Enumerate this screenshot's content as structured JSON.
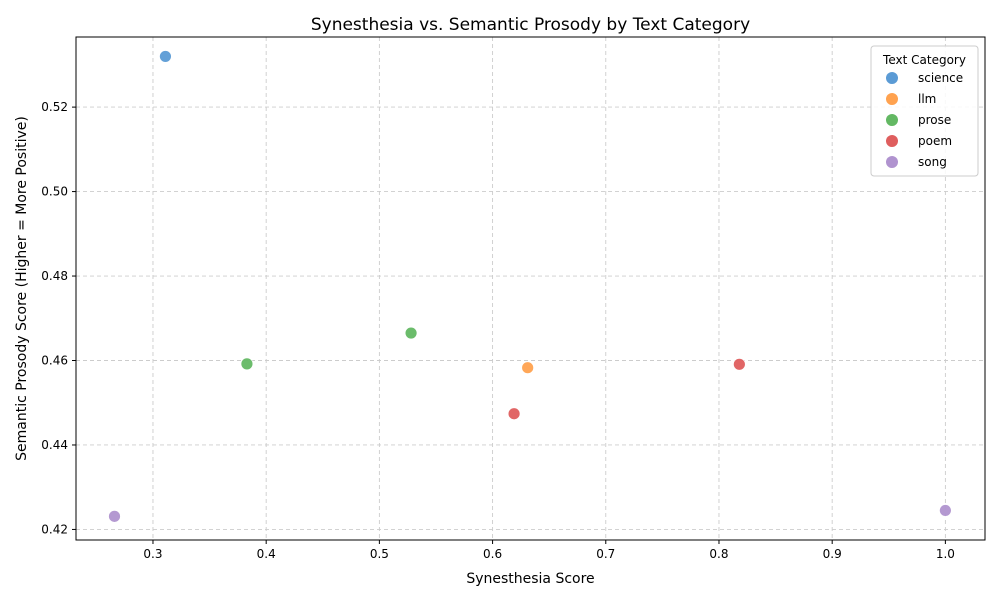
{
  "chart_data": {
    "type": "scatter",
    "title": "Synesthesia vs. Semantic Prosody by Text Category",
    "xlabel": "Synesthesia Score",
    "ylabel": "Semantic Prosody Score (Higher = More Positive)",
    "xlim": [
      0.232,
      1.035
    ],
    "ylim": [
      0.4175,
      0.5366
    ],
    "xticks": [
      0.3,
      0.4,
      0.5,
      0.6,
      0.7,
      0.8,
      0.9,
      1.0
    ],
    "xtick_labels": [
      "0.3",
      "0.4",
      "0.5",
      "0.6",
      "0.7",
      "0.8",
      "0.9",
      "1.0"
    ],
    "yticks": [
      0.42,
      0.44,
      0.46,
      0.48,
      0.5,
      0.52
    ],
    "ytick_labels": [
      "0.42",
      "0.44",
      "0.46",
      "0.48",
      "0.50",
      "0.52"
    ],
    "grid": true,
    "legend": {
      "title": "Text Category",
      "placement": "top-right"
    },
    "series": [
      {
        "name": "science",
        "color": "#5b9bd5",
        "points": [
          [
            0.311,
            0.532
          ]
        ]
      },
      {
        "name": "llm",
        "color": "#ffa24f",
        "points": [
          [
            0.631,
            0.4583
          ]
        ]
      },
      {
        "name": "prose",
        "color": "#63b863",
        "points": [
          [
            0.383,
            0.4592
          ],
          [
            0.528,
            0.4665
          ]
        ]
      },
      {
        "name": "poem",
        "color": "#df5e5e",
        "points": [
          [
            0.619,
            0.4474
          ],
          [
            0.818,
            0.4591
          ]
        ]
      },
      {
        "name": "song",
        "color": "#b093cf",
        "points": [
          [
            0.266,
            0.4231
          ],
          [
            1.0,
            0.4245
          ]
        ]
      }
    ]
  }
}
